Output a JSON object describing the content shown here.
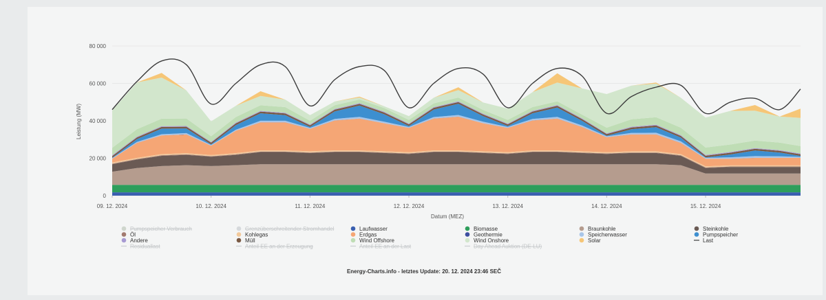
{
  "chart_data": {
    "type": "area",
    "stacked": true,
    "ylabel": "Leistung (MW)",
    "xlabel": "Datum (MEZ)",
    "ylim": [
      0,
      80000
    ],
    "yticks": [
      0,
      20000,
      40000,
      60000,
      80000
    ],
    "ytick_labels": [
      "0",
      "20 000",
      "40 000",
      "60 000",
      "80 000"
    ],
    "xlim": [
      0,
      6.96
    ],
    "xticks": [
      0,
      1,
      2,
      3,
      4,
      5,
      6
    ],
    "xtick_labels": [
      "09. 12. 2024",
      "10. 12. 2024",
      "11. 12. 2024",
      "12. 12. 2024",
      "13. 12. 2024",
      "14. 12. 2024",
      "15. 12. 2024"
    ],
    "grid": true,
    "legend_position": "bottom",
    "x": [
      0,
      0.25,
      0.5,
      0.75,
      1,
      1.25,
      1.5,
      1.75,
      2,
      2.25,
      2.5,
      2.75,
      3,
      3.25,
      3.5,
      3.75,
      4,
      4.25,
      4.5,
      4.75,
      5,
      5.25,
      5.5,
      5.75,
      6,
      6.25,
      6.5,
      6.75,
      6.96
    ],
    "series": [
      {
        "name": "Laufwasser",
        "color": "#3a5fb0",
        "values": [
          1800,
          1800,
          1800,
          1800,
          1800,
          1800,
          1800,
          1800,
          1800,
          1800,
          1800,
          1800,
          1800,
          1800,
          1800,
          1800,
          1800,
          1800,
          1800,
          1800,
          1800,
          1800,
          1800,
          1800,
          1800,
          1800,
          1800,
          1800,
          1800
        ]
      },
      {
        "name": "Biomasse",
        "color": "#2e9e5b",
        "values": [
          4000,
          4000,
          4000,
          4000,
          4000,
          4000,
          4000,
          4000,
          4000,
          4000,
          4000,
          4000,
          4000,
          4000,
          4000,
          4000,
          4000,
          4000,
          4000,
          4000,
          4000,
          4000,
          4000,
          4000,
          4000,
          4000,
          4000,
          4000,
          4000
        ]
      },
      {
        "name": "Braunkohle",
        "color": "#b59c8e",
        "values": [
          7000,
          9000,
          10000,
          10500,
          10000,
          10500,
          11000,
          11000,
          11000,
          11000,
          11000,
          11000,
          11000,
          11000,
          11000,
          11000,
          11000,
          11000,
          11000,
          11000,
          11000,
          11000,
          11000,
          10500,
          6000,
          6000,
          6000,
          6000,
          6000
        ]
      },
      {
        "name": "Steinkohle",
        "color": "#6a5a54",
        "values": [
          4000,
          4500,
          5500,
          5500,
          5000,
          5500,
          6500,
          6500,
          6000,
          6500,
          6500,
          6000,
          5500,
          6500,
          6500,
          6000,
          5500,
          6500,
          6500,
          6000,
          5500,
          6000,
          6000,
          5000,
          3000,
          3500,
          3500,
          3500,
          3500
        ]
      },
      {
        "name": "Öl",
        "color": "#a27a6f",
        "values": [
          300,
          300,
          300,
          300,
          300,
          300,
          300,
          300,
          300,
          300,
          300,
          300,
          300,
          300,
          300,
          300,
          300,
          300,
          300,
          300,
          300,
          300,
          300,
          300,
          300,
          300,
          300,
          300,
          300
        ]
      },
      {
        "name": "Kohlegas",
        "color": "#f2c99b",
        "values": [
          600,
          600,
          600,
          600,
          600,
          600,
          600,
          600,
          600,
          600,
          600,
          600,
          600,
          600,
          600,
          600,
          600,
          600,
          600,
          600,
          600,
          600,
          600,
          600,
          600,
          600,
          600,
          600,
          600
        ]
      },
      {
        "name": "Erdgas",
        "color": "#f5a675",
        "values": [
          2000,
          8000,
          10000,
          10000,
          5000,
          12000,
          15000,
          15000,
          12000,
          16000,
          17000,
          15000,
          13000,
          17000,
          18000,
          15000,
          13000,
          16000,
          17000,
          13000,
          8000,
          9000,
          9000,
          6000,
          4000,
          3500,
          4000,
          4000,
          4000
        ]
      },
      {
        "name": "Geothermie",
        "color": "#3d4fa0",
        "values": [
          30,
          30,
          30,
          30,
          30,
          30,
          30,
          30,
          30,
          30,
          30,
          30,
          30,
          30,
          30,
          30,
          30,
          30,
          30,
          30,
          30,
          30,
          30,
          30,
          30,
          30,
          30,
          30,
          30
        ]
      },
      {
        "name": "Speicherwasser",
        "color": "#a8c5e8",
        "values": [
          300,
          500,
          600,
          700,
          400,
          500,
          800,
          800,
          500,
          800,
          900,
          800,
          500,
          800,
          900,
          800,
          500,
          800,
          900,
          800,
          500,
          800,
          900,
          800,
          500,
          800,
          900,
          800,
          500
        ]
      },
      {
        "name": "Pumpspeicher",
        "color": "#3d8fd0",
        "values": [
          200,
          1500,
          3000,
          2500,
          300,
          2500,
          4000,
          3000,
          500,
          4000,
          6000,
          4000,
          500,
          4000,
          6000,
          3000,
          500,
          3000,
          5000,
          2500,
          300,
          2000,
          3000,
          2000,
          200,
          1500,
          3000,
          2000,
          500
        ]
      },
      {
        "name": "Müll",
        "color": "#7a5a44",
        "values": [
          900,
          900,
          900,
          900,
          900,
          900,
          900,
          900,
          900,
          900,
          900,
          900,
          900,
          900,
          900,
          900,
          900,
          900,
          900,
          900,
          900,
          900,
          900,
          900,
          900,
          900,
          900,
          900,
          900
        ]
      },
      {
        "name": "Andere",
        "color": "#a79ad2",
        "values": [
          400,
          400,
          400,
          400,
          400,
          400,
          400,
          400,
          400,
          400,
          400,
          400,
          400,
          400,
          400,
          400,
          400,
          400,
          400,
          400,
          400,
          400,
          400,
          400,
          400,
          400,
          400,
          400,
          400
        ]
      },
      {
        "name": "Wind Offshore",
        "color": "#bfddb5",
        "values": [
          4000,
          4000,
          4000,
          4000,
          3000,
          3000,
          3000,
          3000,
          2000,
          2000,
          2000,
          2000,
          2000,
          2000,
          2000,
          2000,
          2000,
          2000,
          2000,
          2000,
          3000,
          4000,
          4000,
          4000,
          4000,
          4000,
          4000,
          4000,
          4000
        ]
      },
      {
        "name": "Wind Onshore",
        "color": "#d2e6cc",
        "values": [
          20000,
          25000,
          22000,
          15000,
          8000,
          6000,
          5000,
          4000,
          3000,
          2000,
          1000,
          1000,
          2000,
          3000,
          4000,
          4000,
          6000,
          8000,
          10000,
          14000,
          18000,
          18000,
          18000,
          16000,
          16000,
          18000,
          16000,
          14000,
          15000
        ]
      },
      {
        "name": "Solar",
        "color": "#f6c677",
        "values": [
          0,
          0,
          2500,
          0,
          0,
          0,
          2500,
          0,
          0,
          0,
          500,
          0,
          0,
          0,
          1500,
          0,
          0,
          0,
          5000,
          0,
          0,
          0,
          500,
          0,
          0,
          0,
          3000,
          0,
          5000
        ]
      }
    ],
    "line_series": [
      {
        "name": "Last",
        "color": "#3b3b3b",
        "values": [
          46000,
          61000,
          72000,
          70000,
          49000,
          60000,
          70000,
          69000,
          48000,
          62000,
          69000,
          67000,
          47000,
          60000,
          68000,
          65000,
          47000,
          60000,
          68000,
          64000,
          44000,
          53000,
          58000,
          59000,
          44000,
          50000,
          52000,
          46000,
          57000
        ]
      }
    ],
    "disabled_legend": [
      "Pumpspeicher Verbrauch",
      "Grenzüberschreitender Stromhandel",
      "Residuallast",
      "Anteil EE an der Erzeugung",
      "Anteil EE an der Last",
      "Day Ahead Auktion (DE-LU)"
    ]
  },
  "chart_colors": {
    "last": "#3b3b3b",
    "grid": "#e7e7e7",
    "axis_text": "#555555",
    "disabled_text": "#c3c6c8"
  },
  "legend": {
    "rows": [
      [
        {
          "label": "Pumpspeicher Verbrauch",
          "color": "#cfd6cd",
          "disabled": true,
          "line": false
        },
        {
          "label": "Grenzüberschreitender Stromhandel",
          "color": "#d6d9dc",
          "disabled": true,
          "line": false
        },
        {
          "label": "Laufwasser",
          "color": "#3a5fb0",
          "disabled": false,
          "line": false
        },
        {
          "label": "Biomasse",
          "color": "#2e9e5b",
          "disabled": false,
          "line": false
        },
        {
          "label": "Braunkohle",
          "color": "#b59c8e",
          "disabled": false,
          "line": false
        },
        {
          "label": "Steinkohle",
          "color": "#6a5a54",
          "disabled": false,
          "line": false
        }
      ],
      [
        {
          "label": "Öl",
          "color": "#a27a6f",
          "disabled": false,
          "line": false
        },
        {
          "label": "Kohlegas",
          "color": "#f2c99b",
          "disabled": false,
          "line": false
        },
        {
          "label": "Erdgas",
          "color": "#f5a675",
          "disabled": false,
          "line": false
        },
        {
          "label": "Geothermie",
          "color": "#3d4fa0",
          "disabled": false,
          "line": false
        },
        {
          "label": "Speicherwasser",
          "color": "#a8c5e8",
          "disabled": false,
          "line": false
        },
        {
          "label": "Pumpspeicher",
          "color": "#3d8fd0",
          "disabled": false,
          "line": false
        }
      ],
      [
        {
          "label": "Andere",
          "color": "#a79ad2",
          "disabled": false,
          "line": false
        },
        {
          "label": "Müll",
          "color": "#7a5a44",
          "disabled": false,
          "line": false
        },
        {
          "label": "Wind Offshore",
          "color": "#bfddb5",
          "disabled": false,
          "line": false
        },
        {
          "label": "Wind Onshore",
          "color": "#d2e6cc",
          "disabled": false,
          "line": false
        },
        {
          "label": "Solar",
          "color": "#f6c677",
          "disabled": false,
          "line": false
        },
        {
          "label": "Last",
          "color": "#3b3b3b",
          "disabled": false,
          "line": true
        }
      ],
      [
        {
          "label": "Residuallast",
          "color": "#c9cccf",
          "disabled": true,
          "line": true
        },
        {
          "label": "Anteil EE an der Erzeugung",
          "color": "#c9cccf",
          "disabled": true,
          "line": true
        },
        {
          "label": "Anteil EE an der Last",
          "color": "#c9cccf",
          "disabled": true,
          "line": true
        },
        {
          "label": "Day Ahead Auktion (DE-LU)",
          "color": "#c9cccf",
          "disabled": true,
          "line": true
        }
      ]
    ]
  },
  "footer": {
    "credit": "Energy-Charts.info - letztes Update: 20. 12. 2024 23:46 SEČ"
  }
}
